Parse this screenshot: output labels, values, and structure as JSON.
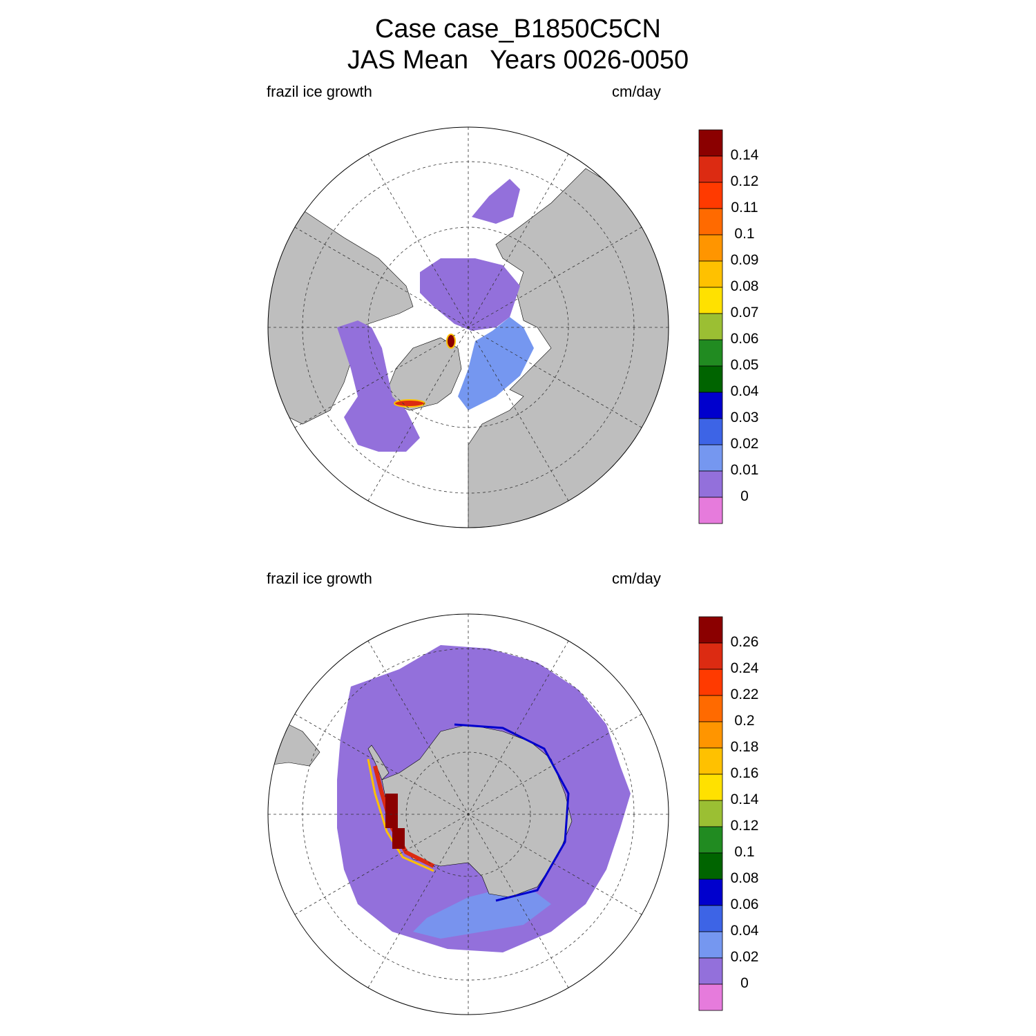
{
  "figure": {
    "title_line1": "Case case_B1850C5CN",
    "title_line2": "JAS Mean   Years 0026-0050"
  },
  "panels": [
    {
      "hemisphere": "north",
      "left_label": "frazil ice growth",
      "right_label": "cm/day",
      "colorbar": {
        "levels": [
          "0.14",
          "0.12",
          "0.11",
          "0.1",
          "0.09",
          "0.08",
          "0.07",
          "0.06",
          "0.05",
          "0.04",
          "0.03",
          "0.02",
          "0.01",
          "0"
        ]
      }
    },
    {
      "hemisphere": "south",
      "left_label": "frazil ice growth",
      "right_label": "cm/day",
      "colorbar": {
        "levels": [
          "0.26",
          "0.24",
          "0.22",
          "0.2",
          "0.18",
          "0.16",
          "0.14",
          "0.12",
          "0.1",
          "0.08",
          "0.06",
          "0.04",
          "0.02",
          "0"
        ]
      }
    }
  ],
  "colors": {
    "land": "#bebebe",
    "ocean_open": "#ffffff",
    "palette_top_to_bottom": [
      "#8b0000",
      "#dc2b12",
      "#ff3a00",
      "#ff6a00",
      "#ff9500",
      "#ffc100",
      "#ffe100",
      "#9bbf33",
      "#218b21",
      "#006400",
      "#0000cd",
      "#3d64e6",
      "#7597f0",
      "#9370db",
      "#e67bdc"
    ]
  }
}
